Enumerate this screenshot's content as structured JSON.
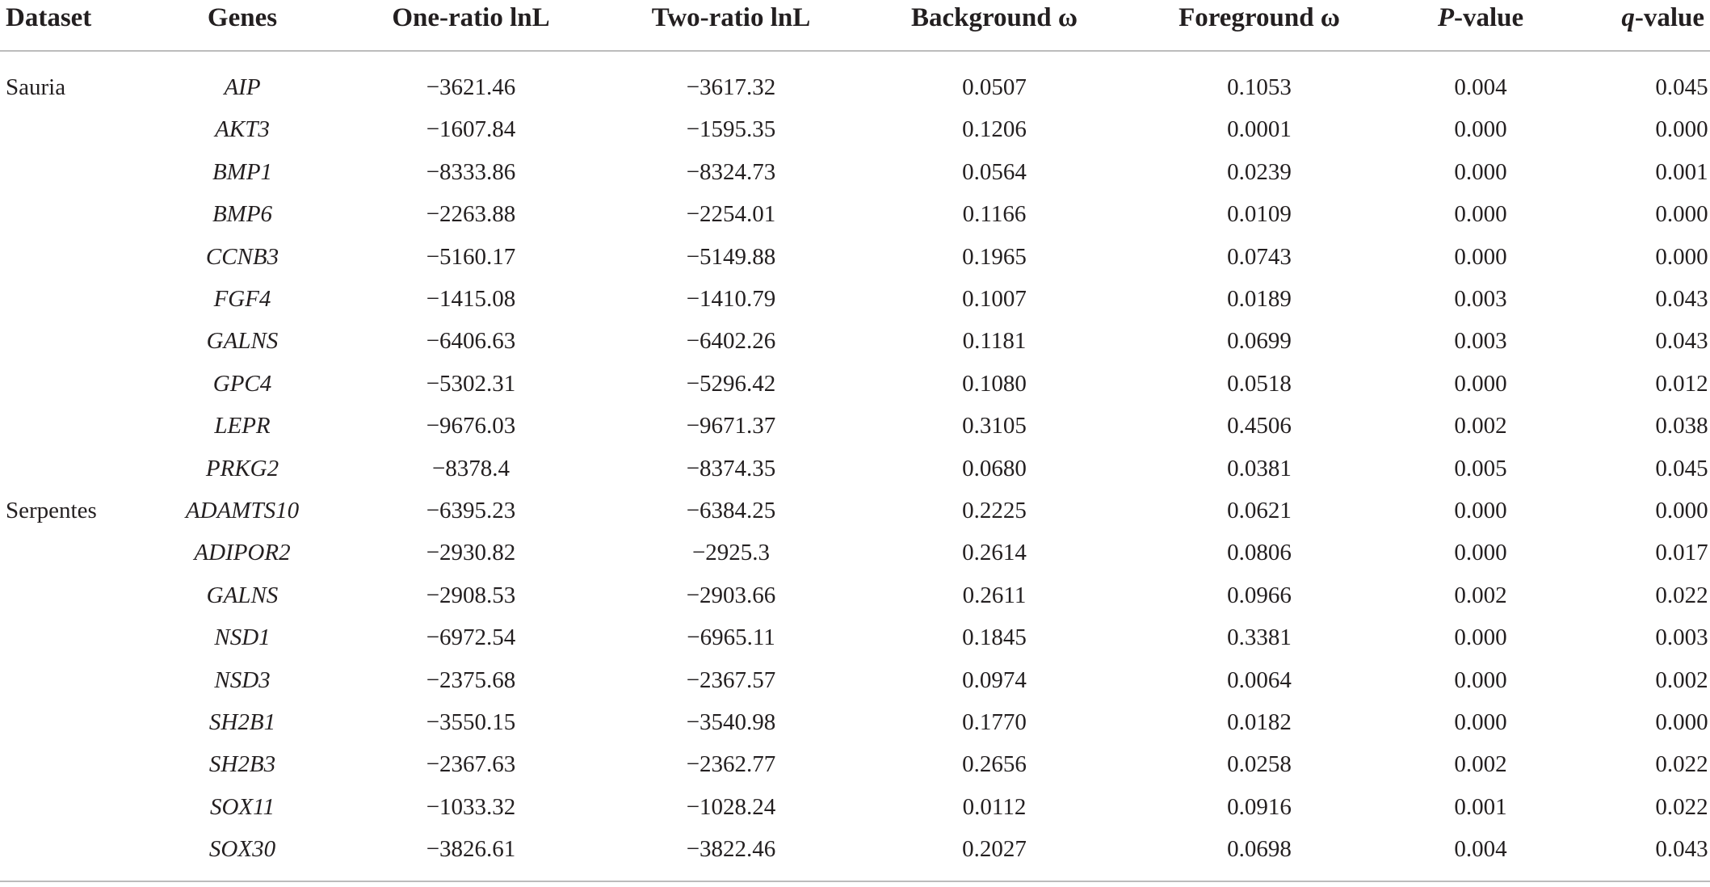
{
  "table": {
    "columns": [
      "Dataset",
      "Genes",
      "One-ratio lnL",
      "Two-ratio lnL",
      "Background ω",
      "Foreground ω",
      "P-value",
      "q-value"
    ],
    "groups": [
      {
        "dataset": "Sauria",
        "rows": [
          [
            "AIP",
            "−3621.46",
            "−3617.32",
            "0.0507",
            "0.1053",
            "0.004",
            "0.045"
          ],
          [
            "AKT3",
            "−1607.84",
            "−1595.35",
            "0.1206",
            "0.0001",
            "0.000",
            "0.000"
          ],
          [
            "BMP1",
            "−8333.86",
            "−8324.73",
            "0.0564",
            "0.0239",
            "0.000",
            "0.001"
          ],
          [
            "BMP6",
            "−2263.88",
            "−2254.01",
            "0.1166",
            "0.0109",
            "0.000",
            "0.000"
          ],
          [
            "CCNB3",
            "−5160.17",
            "−5149.88",
            "0.1965",
            "0.0743",
            "0.000",
            "0.000"
          ],
          [
            "FGF4",
            "−1415.08",
            "−1410.79",
            "0.1007",
            "0.0189",
            "0.003",
            "0.043"
          ],
          [
            "GALNS",
            "−6406.63",
            "−6402.26",
            "0.1181",
            "0.0699",
            "0.003",
            "0.043"
          ],
          [
            "GPC4",
            "−5302.31",
            "−5296.42",
            "0.1080",
            "0.0518",
            "0.000",
            "0.012"
          ],
          [
            "LEPR",
            "−9676.03",
            "−9671.37",
            "0.3105",
            "0.4506",
            "0.002",
            "0.038"
          ],
          [
            "PRKG2",
            "−8378.4",
            "−8374.35",
            "0.0680",
            "0.0381",
            "0.005",
            "0.045"
          ]
        ]
      },
      {
        "dataset": "Serpentes",
        "rows": [
          [
            "ADAMTS10",
            "−6395.23",
            "−6384.25",
            "0.2225",
            "0.0621",
            "0.000",
            "0.000"
          ],
          [
            "ADIPOR2",
            "−2930.82",
            "−2925.3",
            "0.2614",
            "0.0806",
            "0.000",
            "0.017"
          ],
          [
            "GALNS",
            "−2908.53",
            "−2903.66",
            "0.2611",
            "0.0966",
            "0.002",
            "0.022"
          ],
          [
            "NSD1",
            "−6972.54",
            "−6965.11",
            "0.1845",
            "0.3381",
            "0.000",
            "0.003"
          ],
          [
            "NSD3",
            "−2375.68",
            "−2367.57",
            "0.0974",
            "0.0064",
            "0.000",
            "0.002"
          ],
          [
            "SH2B1",
            "−3550.15",
            "−3540.98",
            "0.1770",
            "0.0182",
            "0.000",
            "0.000"
          ],
          [
            "SH2B3",
            "−2367.63",
            "−2362.77",
            "0.2656",
            "0.0258",
            "0.002",
            "0.022"
          ],
          [
            "SOX11",
            "−1033.32",
            "−1028.24",
            "0.0112",
            "0.0916",
            "0.001",
            "0.022"
          ],
          [
            "SOX30",
            "−3826.61",
            "−3822.46",
            "0.2027",
            "0.0698",
            "0.004",
            "0.043"
          ]
        ]
      }
    ]
  }
}
